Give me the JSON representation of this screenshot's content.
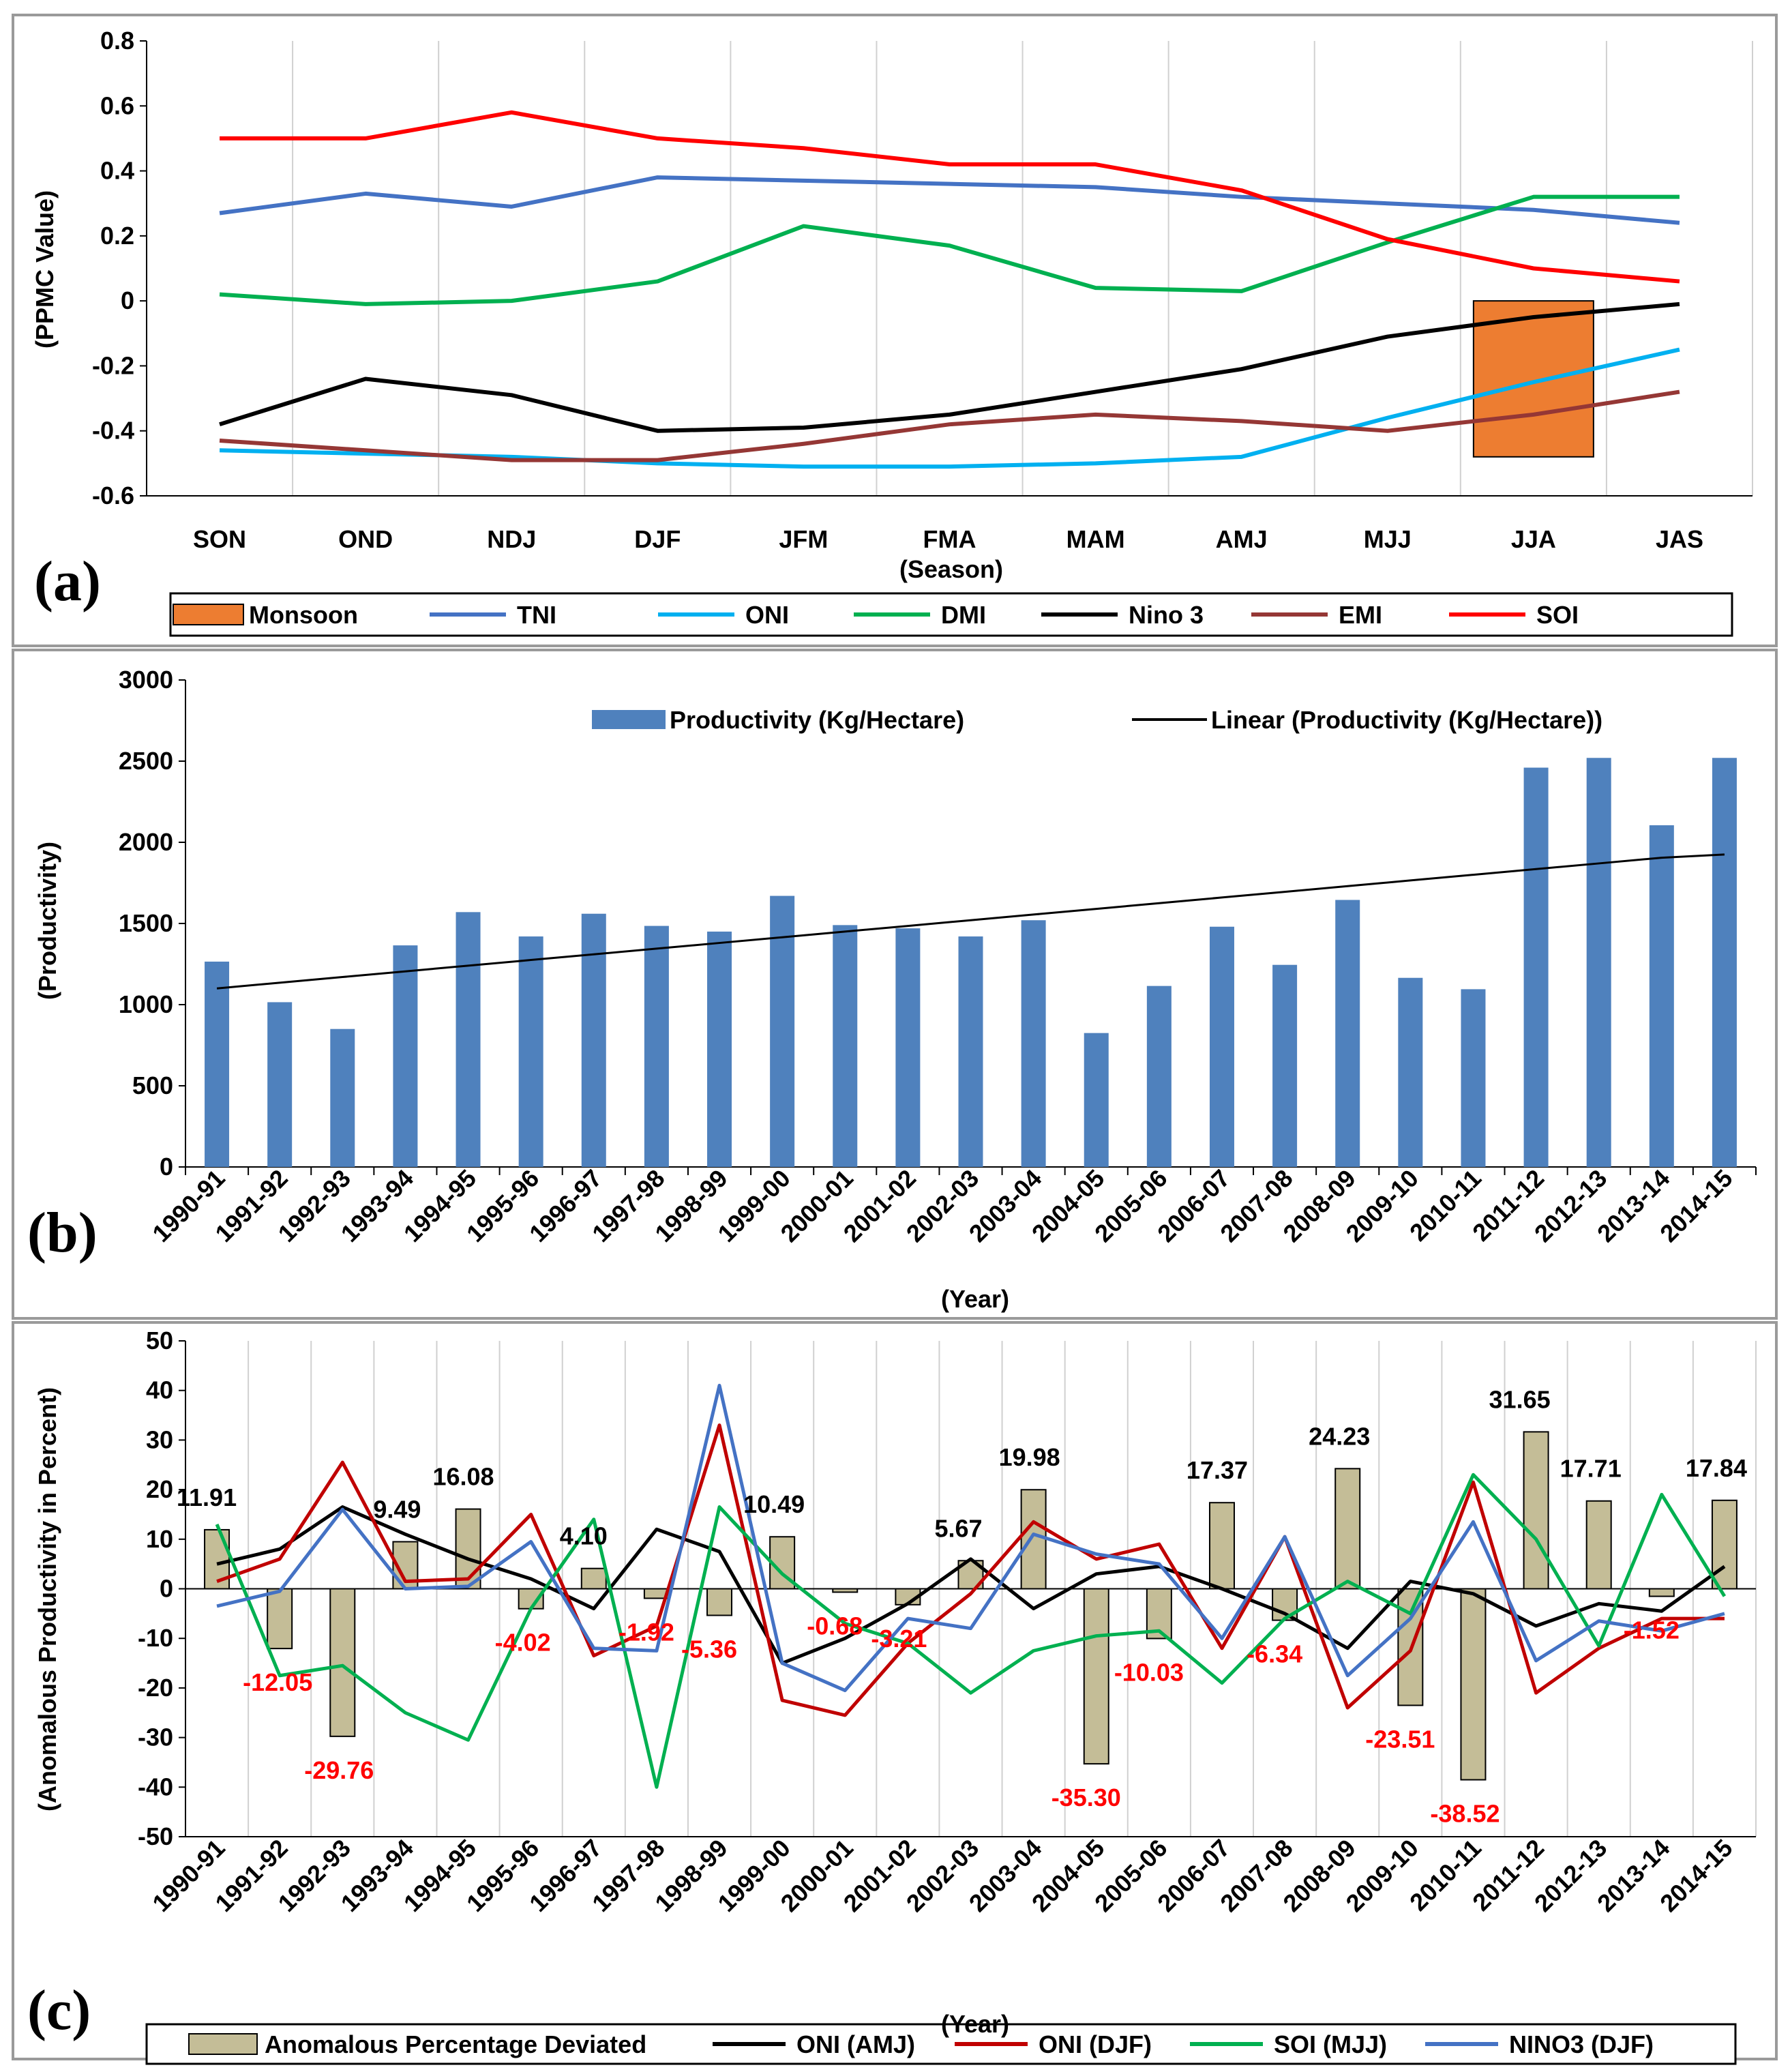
{
  "chart_data": [
    {
      "panel_label": "(a)",
      "type": "line",
      "xlabel": "(Season)",
      "ylabel": "(PPMC Value)",
      "categories": [
        "SON",
        "OND",
        "NDJ",
        "DJF",
        "JFM",
        "FMA",
        "MAM",
        "AMJ",
        "MJJ",
        "JJA",
        "JAS"
      ],
      "ylim": [
        -0.6,
        0.8
      ],
      "yticks": [
        "-0.6",
        "-0.4",
        "-0.2",
        "0",
        "0.2",
        "0.4",
        "0.6",
        "0.8"
      ],
      "grid": "vertical",
      "legend": "bottom",
      "series": [
        {
          "name": "Monsoon",
          "kind": "bar",
          "color": "#ED7D31",
          "values": [
            null,
            null,
            null,
            null,
            null,
            null,
            null,
            null,
            null,
            -0.48,
            null
          ]
        },
        {
          "name": "TNI",
          "kind": "line",
          "color": "#4472C4",
          "values": [
            0.27,
            0.33,
            0.29,
            0.38,
            0.37,
            0.36,
            0.35,
            0.32,
            0.3,
            0.28,
            0.24
          ]
        },
        {
          "name": "ONI",
          "kind": "line",
          "color": "#00B0F0",
          "values": [
            -0.46,
            -0.47,
            -0.48,
            -0.5,
            -0.51,
            -0.51,
            -0.5,
            -0.48,
            -0.36,
            -0.25,
            -0.15
          ]
        },
        {
          "name": "DMI",
          "kind": "line",
          "color": "#00B050",
          "values": [
            0.02,
            -0.01,
            0.0,
            0.06,
            0.23,
            0.17,
            0.04,
            0.03,
            0.18,
            0.32,
            0.32
          ]
        },
        {
          "name": "Nino 3",
          "kind": "line",
          "color": "#000000",
          "values": [
            -0.38,
            -0.24,
            -0.29,
            -0.4,
            -0.39,
            -0.35,
            -0.28,
            -0.21,
            -0.11,
            -0.05,
            -0.01
          ]
        },
        {
          "name": "EMI",
          "kind": "line",
          "color": "#953735",
          "values": [
            -0.43,
            -0.46,
            -0.49,
            -0.49,
            -0.44,
            -0.38,
            -0.35,
            -0.37,
            -0.4,
            -0.35,
            -0.28
          ]
        },
        {
          "name": "SOI",
          "kind": "line",
          "color": "#FF0000",
          "values": [
            0.5,
            0.5,
            0.58,
            0.5,
            0.47,
            0.42,
            0.42,
            0.34,
            0.19,
            0.1,
            0.06
          ]
        }
      ]
    },
    {
      "panel_label": "(b)",
      "type": "bar",
      "xlabel": "(Year)",
      "ylabel": "(Productivity)",
      "categories": [
        "1990-91",
        "1991-92",
        "1992-93",
        "1993-94",
        "1994-95",
        "1995-96",
        "1996-97",
        "1997-98",
        "1998-99",
        "1999-00",
        "2000-01",
        "2001-02",
        "2002-03",
        "2003-04",
        "2004-05",
        "2005-06",
        "2006-07",
        "2007-08",
        "2008-09",
        "2009-10",
        "2010-11",
        "2011-12",
        "2012-13",
        "2013-14",
        "2014-15"
      ],
      "ylim": [
        0,
        3000
      ],
      "yticks": [
        "0",
        "500",
        "1000",
        "1500",
        "2000",
        "2500",
        "3000"
      ],
      "grid": "none",
      "legend": "top",
      "series": [
        {
          "name": "Productivity (Kg/Hectare)",
          "kind": "bar",
          "color": "#4F81BD",
          "values": [
            1265,
            1015,
            850,
            1365,
            1570,
            1420,
            1560,
            1485,
            1450,
            1670,
            1490,
            1470,
            1420,
            1520,
            825,
            1115,
            1480,
            1245,
            1645,
            1165,
            1095,
            2460,
            2520,
            2105,
            2520
          ]
        },
        {
          "name": "Linear (Productivity (Kg/Hectare))",
          "kind": "trend",
          "color": "#000000",
          "values": [
            1100,
            1135,
            1170,
            1205,
            1240,
            1275,
            1310,
            1345,
            1380,
            1415,
            1450,
            1485,
            1520,
            1555,
            1590,
            1625,
            1660,
            1695,
            1730,
            1765,
            1800,
            1835,
            1870,
            1905,
            1925
          ]
        }
      ]
    },
    {
      "panel_label": "(c)",
      "type": "bar",
      "xlabel": "(Year)",
      "ylabel": "(Anomalous Productivity in Percent)",
      "categories": [
        "1990-91",
        "1991-92",
        "1992-93",
        "1993-94",
        "1994-95",
        "1995-96",
        "1996-97",
        "1997-98",
        "1998-99",
        "1999-00",
        "2000-01",
        "2001-02",
        "2002-03",
        "2003-04",
        "2004-05",
        "2005-06",
        "2006-07",
        "2007-08",
        "2008-09",
        "2009-10",
        "2010-11",
        "2011-12",
        "2012-13",
        "2013-14",
        "2014-15"
      ],
      "ylim": [
        -50,
        50
      ],
      "yticks": [
        "-50",
        "-40",
        "-30",
        "-20",
        "-10",
        "0",
        "10",
        "20",
        "30",
        "40",
        "50"
      ],
      "grid": "vertical",
      "legend": "bottom",
      "series": [
        {
          "name": "Anomalous Percentage Deviated",
          "kind": "bar",
          "color": "#C4BD97",
          "values": [
            11.91,
            -12.05,
            -29.76,
            9.49,
            16.08,
            -4.02,
            4.1,
            -1.92,
            -5.36,
            10.49,
            -0.68,
            -3.21,
            5.67,
            19.98,
            -35.3,
            -10.03,
            17.37,
            -6.34,
            24.23,
            -23.51,
            -38.52,
            31.65,
            17.71,
            -1.52,
            17.84
          ]
        },
        {
          "name": "ONI (AMJ)",
          "kind": "line",
          "color": "#000000",
          "values": [
            5,
            8,
            16.5,
            11,
            6,
            2,
            -4,
            12,
            7.5,
            -15,
            -10,
            -3,
            6,
            -4,
            3,
            4.5,
            0,
            -5,
            -12,
            1.5,
            -1,
            -7.5,
            -3,
            -4.5,
            4.5
          ]
        },
        {
          "name": "ONI (DJF)",
          "kind": "line",
          "color": "#C00000",
          "values": [
            1.5,
            6,
            25.5,
            1.5,
            2,
            15,
            -13.5,
            -7.5,
            33,
            -22.5,
            -25.5,
            -11,
            -1,
            13.5,
            6,
            9,
            -12,
            10.5,
            -24,
            -12.5,
            21.5,
            -21,
            -12,
            -6,
            -6
          ]
        },
        {
          "name": "SOI (MJJ)",
          "kind": "line",
          "color": "#00B050",
          "values": [
            13,
            -17.5,
            -15.5,
            -25,
            -30.5,
            -4,
            14,
            -40,
            16.5,
            3,
            -7,
            -11,
            -21,
            -12.5,
            -9.5,
            -8.5,
            -19,
            -6,
            1.5,
            -5,
            23,
            10,
            -11.5,
            19,
            -1.5
          ]
        },
        {
          "name": "NINO3 (DJF)",
          "kind": "line",
          "color": "#4472C4",
          "values": [
            -3.5,
            -0.5,
            16,
            0,
            0.5,
            9.5,
            -12,
            -12.5,
            41,
            -15,
            -20.5,
            -6,
            -8,
            11,
            7,
            5,
            -10,
            10.5,
            -17.5,
            -6,
            13.5,
            -14.5,
            -6.5,
            -8.5,
            -5
          ]
        }
      ]
    }
  ]
}
